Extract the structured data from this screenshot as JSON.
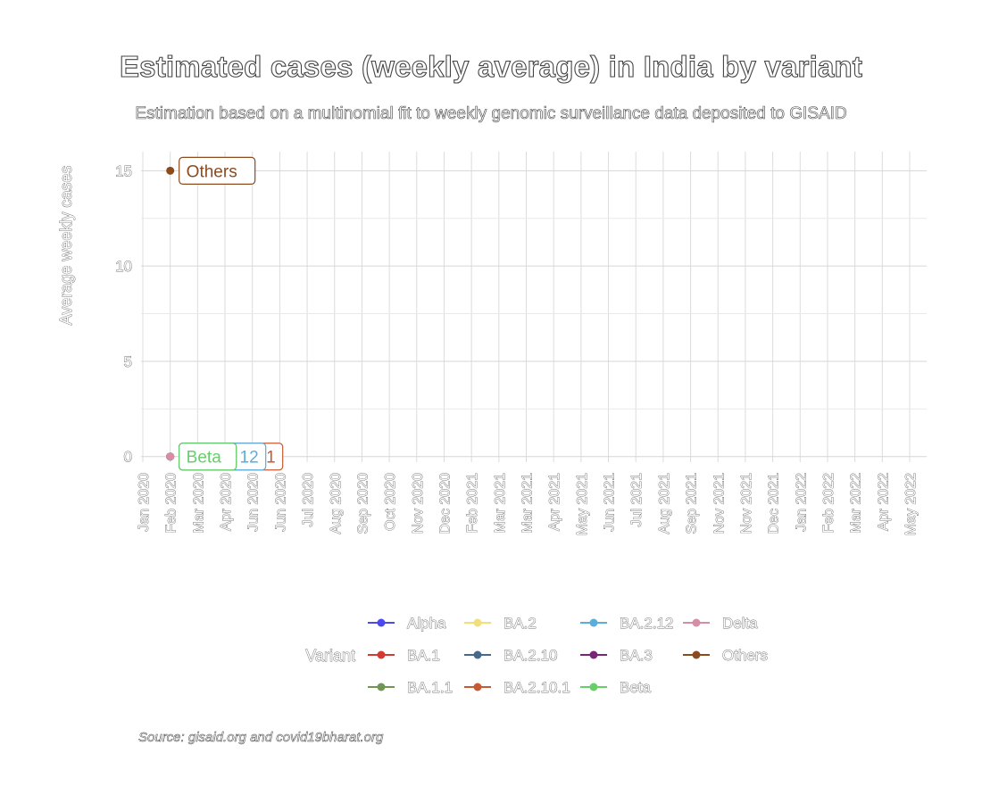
{
  "title": "Estimated cases (weekly average) in India by variant",
  "subtitle": "Estimation based on a multinomial fit to weekly genomic surveillance data deposited to GISAID",
  "source": "Source: gisaid.org and covid19bharat.org",
  "chart_data": {
    "type": "line",
    "xlabel": "",
    "ylabel": "Average weekly cases",
    "x_ticks": [
      "Jan 2020",
      "Feb 2020",
      "Mar 2020",
      "Apr 2020",
      "Jun 2020",
      "Jun 2020",
      "Jul 2020",
      "Aug 2020",
      "Sep 2020",
      "Oct 2020",
      "Nov 2020",
      "Dec 2020",
      "Feb 2021",
      "Mar 2021",
      "Mar 2021",
      "Apr 2021",
      "May 2021",
      "Jun 2021",
      "Jul 2021",
      "Aug 2021",
      "Sep 2021",
      "Nov 2021",
      "Nov 2021",
      "Dec 2021",
      "Jan 2022",
      "Feb 2022",
      "Mar 2022",
      "Apr 2022",
      "May 2022"
    ],
    "y_ticks": [
      0,
      5,
      10,
      15
    ],
    "ylim": [
      -0.2,
      16
    ],
    "grid": true,
    "legend_title": "Variant",
    "legend_position": "bottom",
    "series": [
      {
        "name": "Alpha",
        "color": "#4b49f0",
        "points": [
          [
            "Feb 2020",
            0
          ]
        ]
      },
      {
        "name": "BA.1",
        "color": "#d43a34",
        "points": [
          [
            "Feb 2020",
            0
          ]
        ]
      },
      {
        "name": "BA.1.1",
        "color": "#6f9654",
        "points": [
          [
            "Feb 2020",
            0
          ]
        ]
      },
      {
        "name": "BA.2",
        "color": "#f0e07c",
        "points": [
          [
            "Feb 2020",
            0
          ]
        ]
      },
      {
        "name": "BA.2.10",
        "color": "#48698a",
        "points": [
          [
            "Feb 2020",
            0
          ]
        ]
      },
      {
        "name": "BA.2.10.1",
        "color": "#c65a32",
        "points": [
          [
            "Feb 2020",
            0
          ]
        ]
      },
      {
        "name": "BA.2.12",
        "color": "#5aaed9",
        "points": [
          [
            "Feb 2020",
            0
          ]
        ]
      },
      {
        "name": "BA.3",
        "color": "#7b2577",
        "points": [
          [
            "Feb 2020",
            0
          ]
        ]
      },
      {
        "name": "Beta",
        "color": "#66cf6a",
        "points": [
          [
            "Feb 2020",
            0
          ]
        ]
      },
      {
        "name": "Delta",
        "color": "#d88da6",
        "points": [
          [
            "Feb 2020",
            0
          ]
        ]
      },
      {
        "name": "Others",
        "color": "#8c4a1f",
        "points": [
          [
            "Feb 2020",
            15
          ]
        ]
      }
    ],
    "labels": [
      {
        "series": "Others",
        "text": "Others",
        "x": "Feb 2020",
        "y": 15
      },
      {
        "series": "BA.2.10.1",
        "text": "1",
        "x": "Feb 2020",
        "y": 0
      },
      {
        "series": "BA.2.12",
        "text": "12",
        "x": "Feb 2020",
        "y": 0
      },
      {
        "series": "BA.2.10",
        "text": "",
        "x": "Feb 2020",
        "y": 0
      },
      {
        "series": "Beta",
        "text": "Beta",
        "x": "Feb 2020",
        "y": 0
      }
    ]
  }
}
